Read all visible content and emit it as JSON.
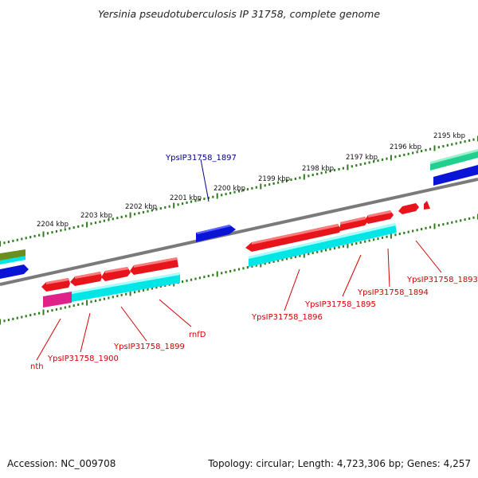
{
  "title": "Yersinia pseudotuberculosis IP 31758, complete genome",
  "footer": {
    "accession": "Accession: NC_009708",
    "summary": "Topology: circular; Length: 4,723,306 bp; Genes: 4,257"
  },
  "colors": {
    "backbone": "#7a7a7a",
    "tick": "#2f7d1f",
    "gene_red": "#e8141b",
    "gene_cyan": "#00e6e6",
    "gene_blue": "#0a14d6",
    "gene_magenta": "#e0218a",
    "gene_olive": "#6b8f1f",
    "gene_seagreen": "#1fd08f",
    "label_red": "#d40000",
    "label_blue": "#00008b"
  },
  "scale_labels": [
    "2204 kbp",
    "2203 kbp",
    "2202 kbp",
    "2201 kbp",
    "2200 kbp",
    "2199 kbp",
    "2198 kbp",
    "2197 kbp",
    "2196 kbp",
    "2195 kbp"
  ],
  "gene_labels": {
    "YpsIP31758_1897": "YpsIP31758_1897",
    "YpsIP31758_1893": "YpsIP31758_1893",
    "YpsIP31758_1894": "YpsIP31758_1894",
    "YpsIP31758_1895": "YpsIP31758_1895",
    "YpsIP31758_1896": "YpsIP31758_1896",
    "rnfD": "rnfD",
    "YpsIP31758_1899": "YpsIP31758_1899",
    "YpsIP31758_1900": "YpsIP31758_1900",
    "nth": "nth"
  }
}
